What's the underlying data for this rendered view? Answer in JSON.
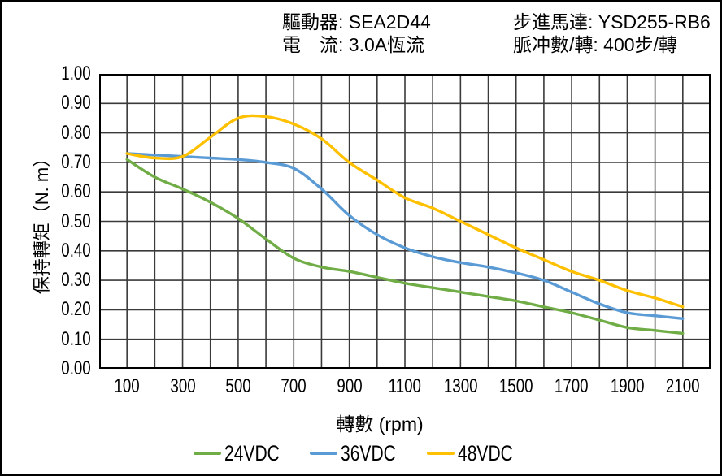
{
  "header": {
    "driver": "驅動器: SEA2D44",
    "current": "電　流: 3.0A恆流",
    "motor": "步進馬達: YSD255-RB6",
    "pulses": "脈冲數/轉: 400步/轉"
  },
  "colors": {
    "grid": "#3a3a3a",
    "axis_border": "#000000",
    "background": "#ffffff",
    "text": "#000000",
    "green_24vdc": "#70ad47",
    "blue_36vdc": "#5b9bd5",
    "yellow_48vdc": "#ffc000"
  },
  "chart_data": {
    "type": "line",
    "title": "",
    "xlabel": "轉數 (rpm)",
    "ylabel": "保持轉矩（N. m）",
    "xlim": [
      0,
      2200
    ],
    "ylim": [
      0,
      1.0
    ],
    "x_grid_step": 100,
    "y_grid_step": 0.1,
    "grid": "on",
    "legend_position": "bottom",
    "x": [
      100,
      200,
      300,
      400,
      500,
      600,
      700,
      800,
      900,
      1000,
      1100,
      1200,
      1300,
      1400,
      1500,
      1600,
      1700,
      1800,
      1900,
      2000,
      2100
    ],
    "series": [
      {
        "name": "24VDC",
        "color": "#70ad47",
        "values": [
          0.71,
          0.65,
          0.61,
          0.565,
          0.51,
          0.44,
          0.375,
          0.345,
          0.33,
          0.31,
          0.29,
          0.275,
          0.26,
          0.245,
          0.23,
          0.21,
          0.19,
          0.165,
          0.14,
          0.13,
          0.12
        ]
      },
      {
        "name": "36VDC",
        "color": "#5b9bd5",
        "values": [
          0.73,
          0.725,
          0.72,
          0.715,
          0.71,
          0.7,
          0.68,
          0.61,
          0.52,
          0.455,
          0.41,
          0.38,
          0.36,
          0.345,
          0.325,
          0.3,
          0.26,
          0.22,
          0.19,
          0.18,
          0.17
        ]
      },
      {
        "name": "48VDC",
        "color": "#ffc000",
        "values": [
          0.73,
          0.715,
          0.72,
          0.785,
          0.85,
          0.855,
          0.83,
          0.78,
          0.7,
          0.64,
          0.58,
          0.545,
          0.5,
          0.455,
          0.41,
          0.37,
          0.33,
          0.3,
          0.265,
          0.24,
          0.21
        ]
      }
    ],
    "xticks": {
      "values": [
        100,
        300,
        500,
        700,
        900,
        1100,
        1300,
        1500,
        1700,
        1900,
        2100
      ],
      "labels": [
        "100",
        "300",
        "500",
        "700",
        "900",
        "1100",
        "1300",
        "1500",
        "1700",
        "1900",
        "2100"
      ]
    },
    "yticks": {
      "values": [
        1.0,
        0.9,
        0.8,
        0.7,
        0.6,
        0.5,
        0.4,
        0.3,
        0.2,
        0.1,
        0.0
      ],
      "labels": [
        "1.00",
        "0.90",
        "0.80",
        "0.70",
        "0.60",
        "0.50",
        "0.40",
        "0.30",
        "0.20",
        "0.10",
        "0.00"
      ]
    }
  }
}
